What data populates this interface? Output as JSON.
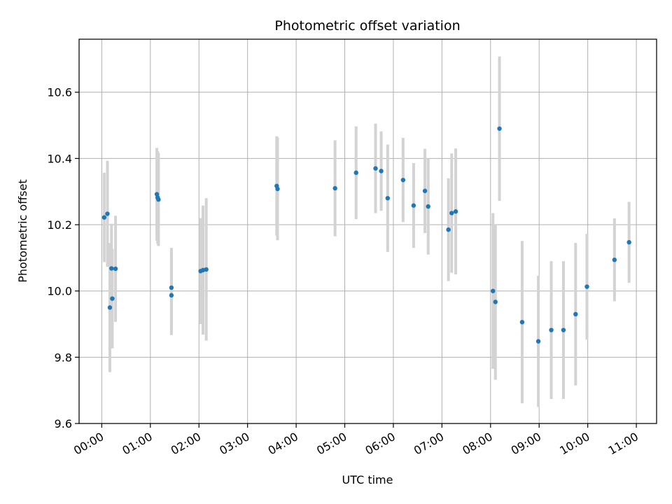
{
  "chart_data": {
    "type": "scatter",
    "title": "Photometric offset variation",
    "xlabel": "UTC time",
    "ylabel": "Photometric offset",
    "x_axis": {
      "unit": "UTC time (HH:MM)",
      "range": [
        "-00:28",
        "11:25"
      ],
      "ticks": [
        "00:00",
        "01:00",
        "02:00",
        "03:00",
        "04:00",
        "05:00",
        "06:00",
        "07:00",
        "08:00",
        "09:00",
        "10:00",
        "11:00"
      ]
    },
    "y_axis": {
      "range": [
        9.6,
        10.76
      ],
      "ticks": [
        9.6,
        9.8,
        10.0,
        10.2,
        10.4,
        10.6
      ],
      "tick_labels": [
        "9.6",
        "9.8",
        "10.0",
        "10.2",
        "10.4",
        "10.6"
      ]
    },
    "grid": true,
    "marker_color": "#1f77b4",
    "errorbar_color": "#d3d3d3",
    "points": [
      {
        "t": "00:03",
        "y": 10.222,
        "err": 0.135
      },
      {
        "t": "00:07",
        "y": 10.233,
        "err": 0.16
      },
      {
        "t": "00:10",
        "y": 9.95,
        "err": 0.195
      },
      {
        "t": "00:12",
        "y": 10.068,
        "err": 0.135
      },
      {
        "t": "00:13",
        "y": 9.977,
        "err": 0.15
      },
      {
        "t": "00:17",
        "y": 10.067,
        "err": 0.16
      },
      {
        "t": "01:08",
        "y": 10.292,
        "err": 0.14
      },
      {
        "t": "01:09",
        "y": 10.282,
        "err": 0.14
      },
      {
        "t": "01:10",
        "y": 10.276,
        "err": 0.14
      },
      {
        "t": "01:26",
        "y": 10.01,
        "err": 0.12
      },
      {
        "t": "01:26",
        "y": 9.987,
        "err": 0.12
      },
      {
        "t": "02:02",
        "y": 10.06,
        "err": 0.16
      },
      {
        "t": "02:05",
        "y": 10.063,
        "err": 0.195
      },
      {
        "t": "02:09",
        "y": 10.065,
        "err": 0.215
      },
      {
        "t": "03:36",
        "y": 10.317,
        "err": 0.15
      },
      {
        "t": "03:37",
        "y": 10.308,
        "err": 0.155
      },
      {
        "t": "04:48",
        "y": 10.31,
        "err": 0.145
      },
      {
        "t": "05:14",
        "y": 10.357,
        "err": 0.14
      },
      {
        "t": "05:38",
        "y": 10.37,
        "err": 0.135
      },
      {
        "t": "05:45",
        "y": 10.362,
        "err": 0.12
      },
      {
        "t": "05:53",
        "y": 10.28,
        "err": 0.162
      },
      {
        "t": "06:12",
        "y": 10.335,
        "err": 0.127
      },
      {
        "t": "06:25",
        "y": 10.258,
        "err": 0.128
      },
      {
        "t": "06:39",
        "y": 10.302,
        "err": 0.127
      },
      {
        "t": "06:43",
        "y": 10.255,
        "err": 0.145
      },
      {
        "t": "07:08",
        "y": 10.185,
        "err": 0.155
      },
      {
        "t": "07:12",
        "y": 10.235,
        "err": 0.18
      },
      {
        "t": "07:17",
        "y": 10.24,
        "err": 0.19
      },
      {
        "t": "08:03",
        "y": 10.0,
        "err": 0.235
      },
      {
        "t": "08:06",
        "y": 9.967,
        "err": 0.235
      },
      {
        "t": "08:11",
        "y": 10.49,
        "err": 0.218
      },
      {
        "t": "08:39",
        "y": 9.906,
        "err": 0.245
      },
      {
        "t": "08:59",
        "y": 9.848,
        "err": 0.198
      },
      {
        "t": "09:15",
        "y": 9.882,
        "err": 0.208
      },
      {
        "t": "09:30",
        "y": 9.882,
        "err": 0.208
      },
      {
        "t": "09:45",
        "y": 9.93,
        "err": 0.215
      },
      {
        "t": "09:59",
        "y": 10.013,
        "err": 0.16
      },
      {
        "t": "10:33",
        "y": 10.094,
        "err": 0.125
      },
      {
        "t": "10:51",
        "y": 10.147,
        "err": 0.122
      }
    ]
  }
}
